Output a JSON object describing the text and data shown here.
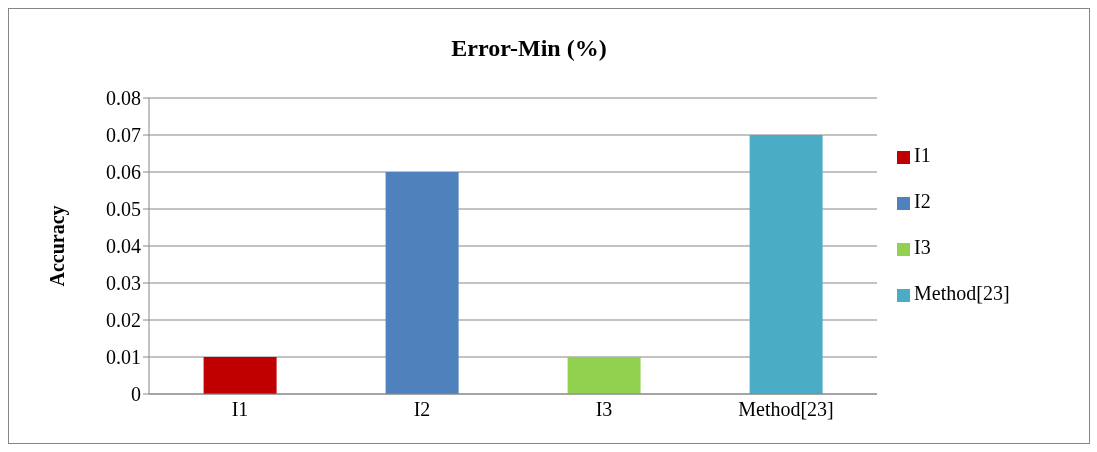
{
  "chart_data": {
    "type": "bar",
    "title": "Error-Min (%)",
    "ylabel": "Accuracy",
    "categories": [
      "I1",
      "I2",
      "I3",
      "Method[23]"
    ],
    "series": [
      {
        "name": "I1",
        "color": "#c00000",
        "values": [
          0.01,
          null,
          null,
          null
        ]
      },
      {
        "name": "I2",
        "color": "#4f81bd",
        "values": [
          null,
          0.06,
          null,
          null
        ]
      },
      {
        "name": "I3",
        "color": "#92d050",
        "values": [
          null,
          null,
          0.01,
          null
        ]
      },
      {
        "name": "Method[23]",
        "color": "#4bacc6",
        "values": [
          null,
          null,
          null,
          0.07
        ]
      }
    ],
    "stacked": true,
    "ylim": [
      0,
      0.08
    ],
    "yticks": [
      0,
      0.01,
      0.02,
      0.03,
      0.04,
      0.05,
      0.06,
      0.07,
      0.08
    ],
    "grid": "y",
    "legend": "right"
  }
}
